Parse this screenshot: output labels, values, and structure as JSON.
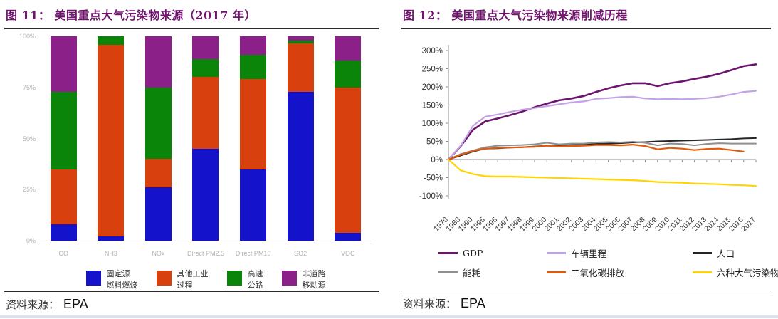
{
  "left_panel": {
    "fig_label": "图 11：",
    "title": "美国重点大气污染物来源（2017 年）",
    "source_label": "资料来源：",
    "source_value": "EPA"
  },
  "right_panel": {
    "fig_label": "图 12：",
    "title": "美国重点大气污染物来源削减历程",
    "source_label": "资料来源：",
    "source_value": "EPA"
  },
  "chart_data": [
    {
      "type": "bar",
      "stacked": true,
      "title": "美国重点大气污染物来源（2017 年）",
      "categories": [
        "CO",
        "NH3",
        "NOx",
        "Direct PM2.5",
        "Direct PM10",
        "SO2",
        "VOC"
      ],
      "series": [
        {
          "name": "固定源燃料燃烧",
          "label_lines": "固定源\n燃料燃烧",
          "color": "#1412cb",
          "values": [
            8,
            2,
            26,
            45,
            35,
            73,
            4
          ]
        },
        {
          "name": "其他工业过程",
          "label_lines": "其他工业\n过程",
          "color": "#d8410e",
          "values": [
            27,
            94,
            14,
            35,
            44,
            23.5,
            71
          ]
        },
        {
          "name": "高速公路",
          "label_lines": "高速\n公路",
          "color": "#0a850a",
          "values": [
            38,
            4,
            35,
            9,
            12,
            1.5,
            13
          ]
        },
        {
          "name": "非道路移动源",
          "label_lines": "非道路\n移动源",
          "color": "#8a2088",
          "values": [
            27,
            0,
            25,
            11,
            9,
            2,
            12
          ]
        }
      ],
      "ylabel": "",
      "xlabel": "",
      "ylim": [
        0,
        100
      ],
      "yticks": [
        "0%",
        "25%",
        "50%",
        "75%",
        "100%"
      ],
      "grid": false,
      "legend_position": "bottom"
    },
    {
      "type": "line",
      "title": "美国重点大气污染物来源削减历程",
      "x": [
        "1970",
        "1980",
        "1990",
        "1995",
        "1996",
        "1997",
        "1998",
        "1999",
        "2000",
        "2001",
        "2002",
        "2003",
        "2004",
        "2005",
        "2006",
        "2007",
        "2008",
        "2009",
        "2010",
        "2011",
        "2012",
        "2013",
        "2014",
        "2015",
        "2016",
        "2017"
      ],
      "ylim": [
        -100,
        300
      ],
      "ytick_step": 50,
      "yticks": [
        "-100%",
        "-50%",
        "0%",
        "50%",
        "100%",
        "150%",
        "200%",
        "250%",
        "300%"
      ],
      "grid": false,
      "legend_position": "bottom",
      "legend_rows": [
        [
          "GDP",
          "车辆里程",
          "人口"
        ],
        [
          "能耗",
          "二氧化碳排放",
          "六种大气污染物排放"
        ]
      ],
      "series": [
        {
          "name": "GDP",
          "color": "#6C156E",
          "width": 2.6,
          "values": [
            0,
            37,
            82,
            105,
            113,
            122,
            132,
            144,
            154,
            163,
            168,
            175,
            186,
            196,
            204,
            210,
            210,
            202,
            210,
            215,
            222,
            228,
            236,
            246,
            257,
            262
          ]
        },
        {
          "name": "车辆里程",
          "color": "#C3A3E6",
          "width": 2.2,
          "values": [
            0,
            38,
            93,
            118,
            124,
            131,
            137,
            142,
            147,
            152,
            157,
            160,
            167,
            169,
            172,
            173,
            168,
            166,
            167,
            166,
            167,
            169,
            173,
            179,
            186,
            189
          ]
        },
        {
          "name": "人口",
          "color": "#262626",
          "width": 2,
          "values": [
            0,
            11,
            22,
            30,
            31,
            33,
            34,
            36,
            38,
            39,
            40,
            41,
            43,
            44,
            45,
            47,
            48,
            50,
            51,
            52,
            53,
            54,
            55,
            56,
            58,
            59
          ]
        },
        {
          "name": "能耗",
          "color": "#8F8F8F",
          "width": 2,
          "values": [
            0,
            15,
            25,
            34,
            38,
            39,
            40,
            42,
            46,
            42,
            44,
            44,
            47,
            48,
            47,
            49,
            46,
            39,
            44,
            43,
            39,
            43,
            45,
            44,
            44,
            44
          ]
        },
        {
          "name": "二氧化碳排放",
          "color": "#E25B0D",
          "width": 2.2,
          "values": [
            0,
            13,
            24,
            30,
            32,
            33,
            34,
            35,
            38,
            36,
            37,
            38,
            40,
            40,
            39,
            41,
            37,
            28,
            32,
            30,
            26,
            29,
            30,
            26,
            22,
            null
          ]
        },
        {
          "name": "六种大气污染物排放",
          "color": "#FFD400",
          "width": 2.2,
          "values": [
            0,
            -30,
            -40,
            -46,
            -47,
            -47,
            -48,
            -49,
            -50,
            -51,
            -52,
            -53,
            -54,
            -55,
            -56,
            -57,
            -59,
            -62,
            -63,
            -64,
            -66,
            -67,
            -68,
            -70,
            -71,
            -73
          ]
        }
      ]
    }
  ]
}
